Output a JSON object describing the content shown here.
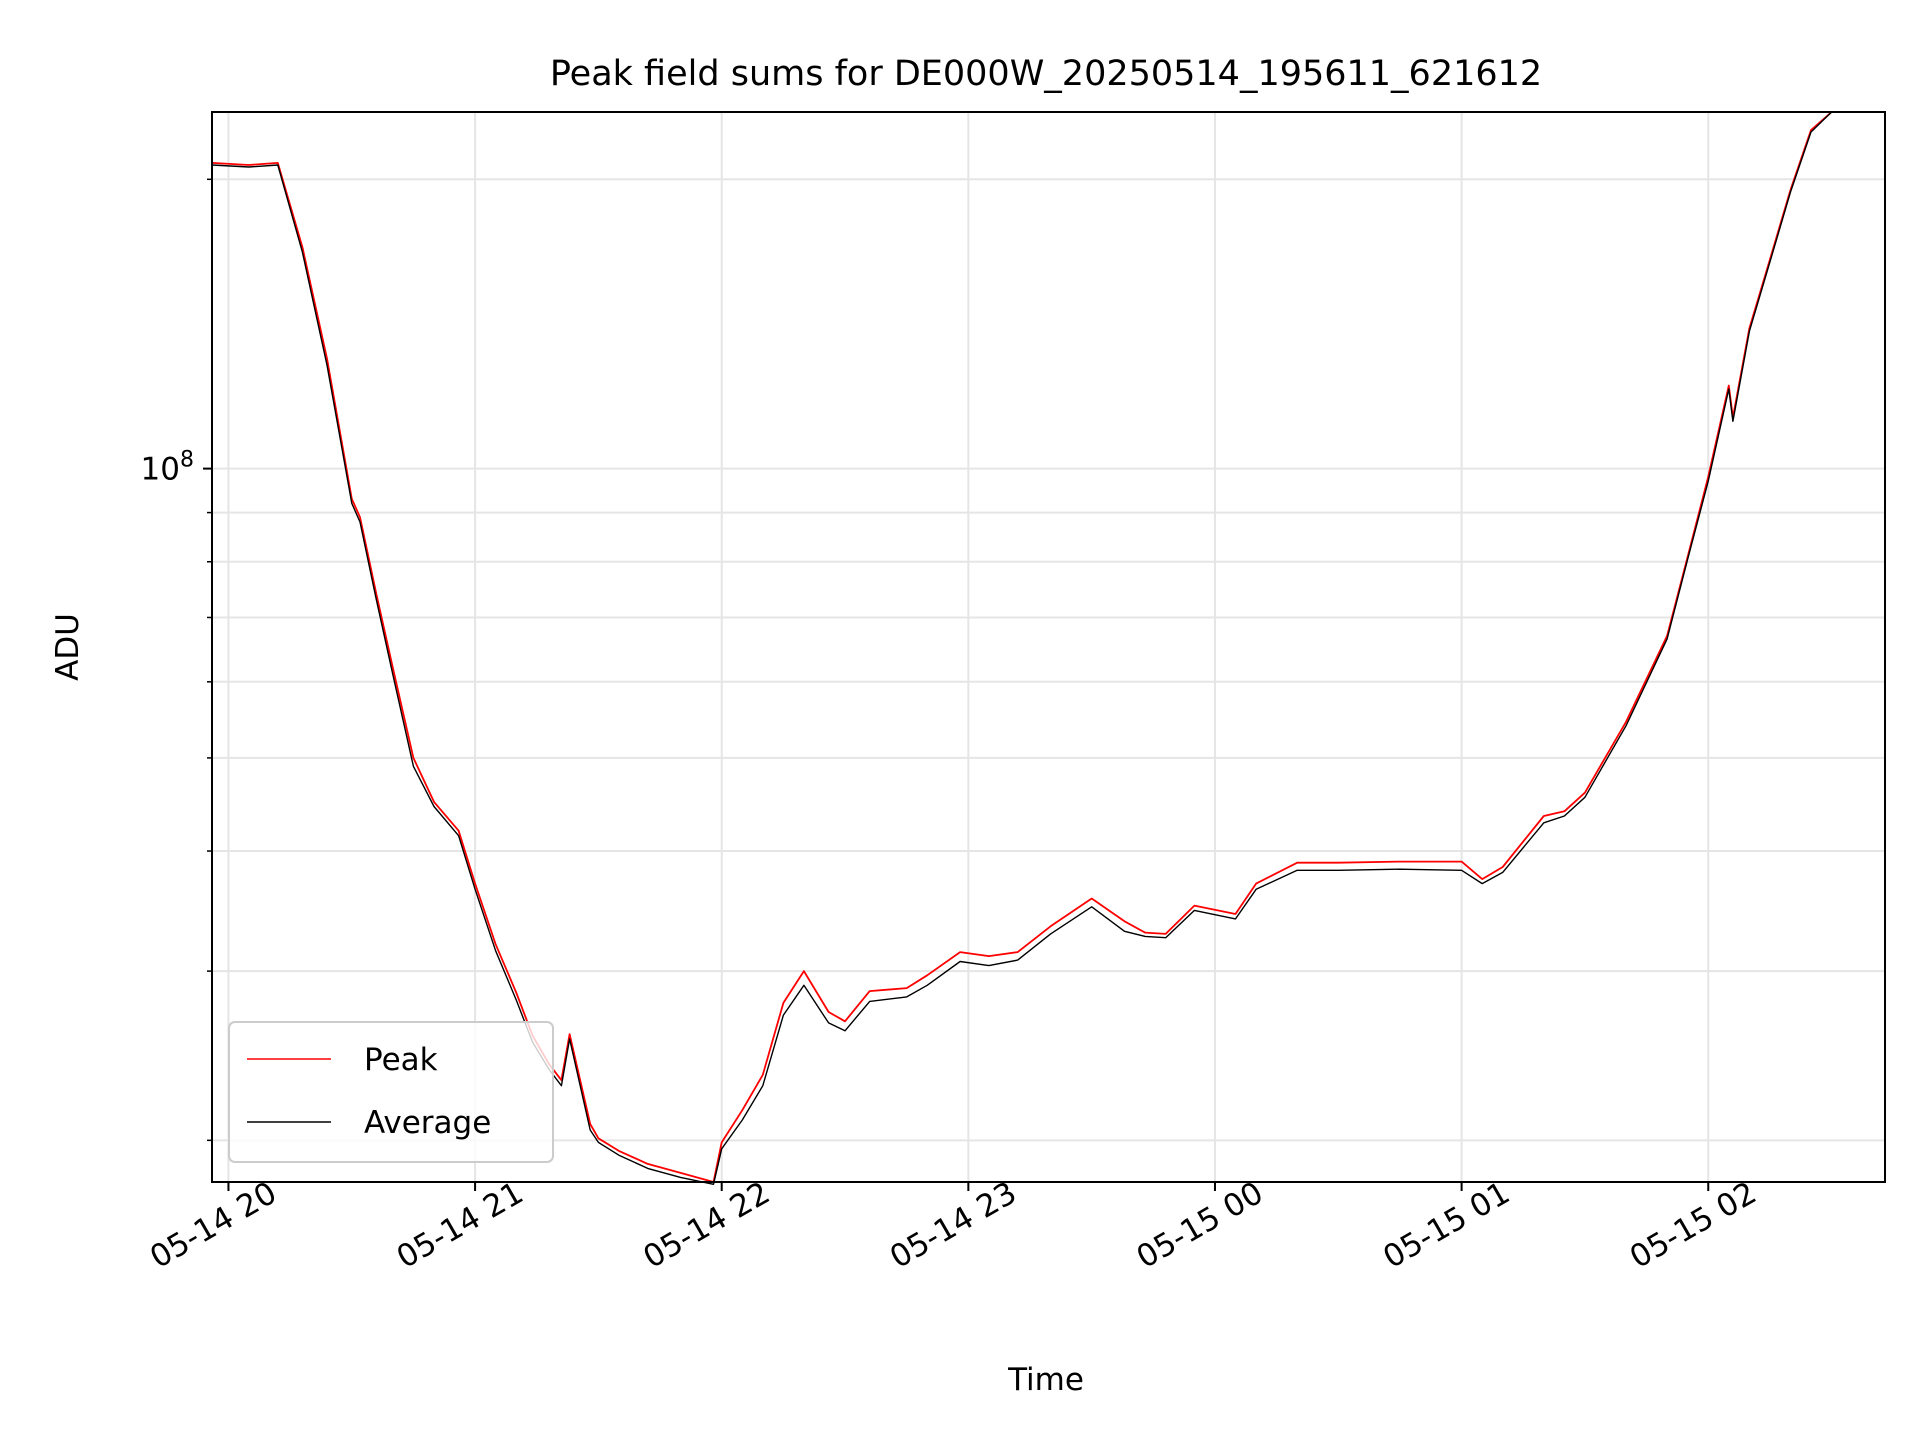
{
  "chart_data": {
    "type": "line",
    "title": "Peak field sums for DE000W_20250514_195611_621612",
    "xlabel": "Time",
    "ylabel": "ADU",
    "yscale": "log",
    "xlim": [
      "2025-05-14 19:56",
      "2025-05-15 02:43"
    ],
    "ylim": [
      18100000,
      235000000
    ],
    "x_ticks": [
      {
        "value": "2025-05-14 20:00",
        "label": "05-14 20"
      },
      {
        "value": "2025-05-14 21:00",
        "label": "05-14 21"
      },
      {
        "value": "2025-05-14 22:00",
        "label": "05-14 22"
      },
      {
        "value": "2025-05-14 23:00",
        "label": "05-14 23"
      },
      {
        "value": "2025-05-15 00:00",
        "label": "05-15 00"
      },
      {
        "value": "2025-05-15 01:00",
        "label": "05-15 01"
      },
      {
        "value": "2025-05-15 02:00",
        "label": "05-15 02"
      }
    ],
    "y_major_ticks": [
      {
        "value": 100000000,
        "base": "10",
        "exp": "8"
      }
    ],
    "y_minor_ticks": [
      20000000,
      30000000,
      40000000,
      50000000,
      60000000,
      70000000,
      80000000,
      90000000,
      200000000
    ],
    "grid": true,
    "legend_position": "lower left",
    "series": [
      {
        "name": "Peak",
        "color": "#ff0000",
        "x": [
          "2025-05-14 19:56",
          "2025-05-14 20:05",
          "2025-05-14 20:12",
          "2025-05-14 20:18",
          "2025-05-14 20:24",
          "2025-05-14 20:30",
          "2025-05-14 20:32",
          "2025-05-14 20:36",
          "2025-05-14 20:40",
          "2025-05-14 20:45",
          "2025-05-14 20:50",
          "2025-05-14 20:56",
          "2025-05-14 21:00",
          "2025-05-14 21:05",
          "2025-05-14 21:10",
          "2025-05-14 21:14",
          "2025-05-14 21:18",
          "2025-05-14 21:21",
          "2025-05-14 21:23",
          "2025-05-14 21:28",
          "2025-05-14 21:30",
          "2025-05-14 21:35",
          "2025-05-14 21:42",
          "2025-05-14 21:50",
          "2025-05-14 21:58",
          "2025-05-14 22:00",
          "2025-05-14 22:05",
          "2025-05-14 22:10",
          "2025-05-14 22:15",
          "2025-05-14 22:20",
          "2025-05-14 22:26",
          "2025-05-14 22:30",
          "2025-05-14 22:36",
          "2025-05-14 22:45",
          "2025-05-14 22:50",
          "2025-05-14 22:58",
          "2025-05-14 23:05",
          "2025-05-14 23:12",
          "2025-05-14 23:20",
          "2025-05-14 23:30",
          "2025-05-14 23:38",
          "2025-05-14 23:43",
          "2025-05-14 23:48",
          "2025-05-14 23:55",
          "2025-05-15 00:05",
          "2025-05-15 00:10",
          "2025-05-15 00:20",
          "2025-05-15 00:30",
          "2025-05-15 00:45",
          "2025-05-15 01:00",
          "2025-05-15 01:05",
          "2025-05-15 01:10",
          "2025-05-15 01:20",
          "2025-05-15 01:25",
          "2025-05-15 01:30",
          "2025-05-15 01:40",
          "2025-05-15 01:50",
          "2025-05-15 01:55",
          "2025-05-15 02:00",
          "2025-05-15 02:05",
          "2025-05-15 02:06",
          "2025-05-15 02:10",
          "2025-05-15 02:15",
          "2025-05-15 02:20",
          "2025-05-15 02:25",
          "2025-05-15 02:30",
          "2025-05-15 02:43"
        ],
        "y": [
          208000000,
          207000000,
          208000000,
          170000000,
          130000000,
          93000000,
          89000000,
          74000000,
          62000000,
          50000000,
          45000000,
          42000000,
          37000000,
          32000000,
          28500000,
          25700000,
          24000000,
          23100000,
          25800000,
          20800000,
          20100000,
          19500000,
          18900000,
          18500000,
          18100000,
          19900000,
          21500000,
          23400000,
          27800000,
          30000000,
          27200000,
          26600000,
          28600000,
          28800000,
          29700000,
          31400000,
          31100000,
          31400000,
          33400000,
          35700000,
          33800000,
          32900000,
          32800000,
          35100000,
          34400000,
          37000000,
          38900000,
          38900000,
          39000000,
          39000000,
          37400000,
          38500000,
          43500000,
          44000000,
          46000000,
          54500000,
          67000000,
          81000000,
          98000000,
          122000000,
          113000000,
          140000000,
          165000000,
          195000000,
          225000000,
          235000000,
          235000000
        ]
      },
      {
        "name": "Average",
        "color": "#000000",
        "x": [
          "2025-05-14 19:56",
          "2025-05-14 20:05",
          "2025-05-14 20:12",
          "2025-05-14 20:18",
          "2025-05-14 20:24",
          "2025-05-14 20:30",
          "2025-05-14 20:32",
          "2025-05-14 20:36",
          "2025-05-14 20:40",
          "2025-05-14 20:45",
          "2025-05-14 20:50",
          "2025-05-14 20:56",
          "2025-05-14 21:00",
          "2025-05-14 21:05",
          "2025-05-14 21:10",
          "2025-05-14 21:14",
          "2025-05-14 21:18",
          "2025-05-14 21:21",
          "2025-05-14 21:23",
          "2025-05-14 21:28",
          "2025-05-14 21:30",
          "2025-05-14 21:35",
          "2025-05-14 21:42",
          "2025-05-14 21:50",
          "2025-05-14 21:58",
          "2025-05-14 22:00",
          "2025-05-14 22:05",
          "2025-05-14 22:10",
          "2025-05-14 22:15",
          "2025-05-14 22:20",
          "2025-05-14 22:26",
          "2025-05-14 22:30",
          "2025-05-14 22:36",
          "2025-05-14 22:45",
          "2025-05-14 22:50",
          "2025-05-14 22:58",
          "2025-05-14 23:05",
          "2025-05-14 23:12",
          "2025-05-14 23:20",
          "2025-05-14 23:30",
          "2025-05-14 23:38",
          "2025-05-14 23:43",
          "2025-05-14 23:48",
          "2025-05-14 23:55",
          "2025-05-15 00:05",
          "2025-05-15 00:10",
          "2025-05-15 00:20",
          "2025-05-15 00:30",
          "2025-05-15 00:45",
          "2025-05-15 01:00",
          "2025-05-15 01:05",
          "2025-05-15 01:10",
          "2025-05-15 01:20",
          "2025-05-15 01:25",
          "2025-05-15 01:30",
          "2025-05-15 01:40",
          "2025-05-15 01:50",
          "2025-05-15 01:55",
          "2025-05-15 02:00",
          "2025-05-15 02:05",
          "2025-05-15 02:06",
          "2025-05-15 02:10",
          "2025-05-15 02:15",
          "2025-05-15 02:20",
          "2025-05-15 02:25",
          "2025-05-15 02:30",
          "2025-05-15 02:43"
        ],
        "y": [
          207000000,
          206000000,
          207000000,
          168000000,
          128000000,
          92000000,
          88000000,
          73000000,
          61000000,
          49000000,
          44500000,
          41500000,
          36500000,
          31500000,
          28000000,
          25300000,
          23700000,
          22800000,
          25500000,
          20500000,
          19900000,
          19300000,
          18700000,
          18300000,
          18000000,
          19600000,
          21000000,
          22800000,
          27000000,
          29000000,
          26500000,
          26000000,
          27900000,
          28200000,
          29000000,
          30700000,
          30400000,
          30800000,
          32800000,
          35000000,
          33000000,
          32600000,
          32500000,
          34700000,
          34000000,
          36500000,
          38200000,
          38200000,
          38300000,
          38200000,
          37000000,
          38000000,
          42800000,
          43500000,
          45500000,
          54000000,
          66500000,
          80500000,
          97000000,
          121000000,
          112000000,
          139000000,
          164000000,
          194000000,
          224000000,
          235000000,
          235000000
        ]
      }
    ]
  }
}
